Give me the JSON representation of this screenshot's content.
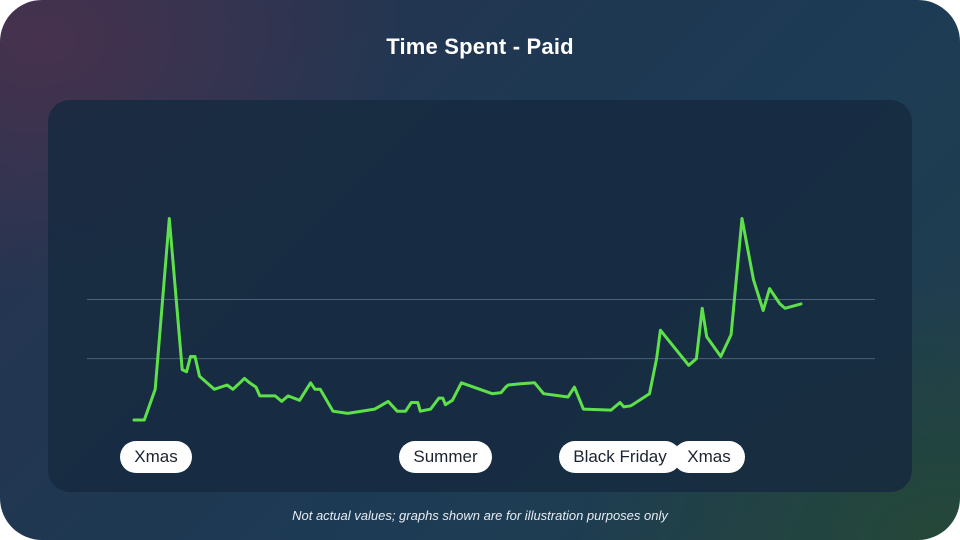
{
  "title": "Time Spent - Paid",
  "footnote": "Not actual values; graphs shown are for illustration purposes only",
  "colors": {
    "line": "#5ee04a",
    "gridline": "#4a627a",
    "pill_bg": "#ffffff",
    "pill_text": "#1b2330"
  },
  "chart_data": {
    "type": "line",
    "title": "Time Spent - Paid",
    "xlabel": "",
    "ylabel": "",
    "xlim": [
      0,
      100
    ],
    "ylim": [
      0,
      100
    ],
    "grid": true,
    "y_gridlines": [
      28,
      55
    ],
    "series": [
      {
        "color": "#5ee04a",
        "points": [
          [
            0,
            0
          ],
          [
            1.6,
            0
          ],
          [
            3.3,
            14
          ],
          [
            5.5,
            92
          ],
          [
            7.5,
            23
          ],
          [
            8.2,
            22
          ],
          [
            8.8,
            29
          ],
          [
            9.5,
            29
          ],
          [
            10.2,
            20
          ],
          [
            12.5,
            14
          ],
          [
            14.5,
            16
          ],
          [
            15.4,
            14
          ],
          [
            16.5,
            17
          ],
          [
            17.2,
            19
          ],
          [
            18,
            17
          ],
          [
            19,
            15
          ],
          [
            19.6,
            11
          ],
          [
            22,
            11
          ],
          [
            23,
            8.5
          ],
          [
            24,
            11
          ],
          [
            25.8,
            9
          ],
          [
            27.5,
            17
          ],
          [
            28.2,
            14
          ],
          [
            29,
            14
          ],
          [
            31,
            4
          ],
          [
            33.3,
            3
          ],
          [
            37.5,
            5
          ],
          [
            39.6,
            8.5
          ],
          [
            41,
            4
          ],
          [
            42.3,
            4
          ],
          [
            43.2,
            8
          ],
          [
            44.2,
            8
          ],
          [
            44.6,
            4
          ],
          [
            46.2,
            5
          ],
          [
            47.5,
            10
          ],
          [
            48.1,
            10
          ],
          [
            48.5,
            7
          ],
          [
            49.6,
            9
          ],
          [
            51,
            17
          ],
          [
            55.8,
            12
          ],
          [
            57.2,
            12.5
          ],
          [
            57.9,
            15
          ],
          [
            58.3,
            16
          ],
          [
            60,
            16.5
          ],
          [
            62.4,
            17
          ],
          [
            63.8,
            12
          ],
          [
            67.6,
            10.5
          ],
          [
            68.6,
            15
          ],
          [
            70,
            5
          ],
          [
            74.3,
            4.5
          ],
          [
            75.7,
            8
          ],
          [
            76.3,
            6
          ],
          [
            77.4,
            6.5
          ],
          [
            80.3,
            12
          ],
          [
            81.4,
            28
          ],
          [
            82,
            41
          ],
          [
            86.4,
            25
          ],
          [
            87.6,
            28
          ],
          [
            88.5,
            51
          ],
          [
            89.2,
            38
          ],
          [
            91.4,
            29
          ],
          [
            93,
            39
          ],
          [
            94.7,
            92
          ],
          [
            96.5,
            64
          ],
          [
            98,
            50
          ],
          [
            99,
            60
          ],
          [
            100.6,
            53
          ],
          [
            101.4,
            51
          ],
          [
            103.9,
            53
          ]
        ]
      }
    ],
    "event_labels": [
      {
        "label": "Xmas",
        "x": 3.5
      },
      {
        "label": "Summer",
        "x": 48.5
      },
      {
        "label": "Black Friday",
        "x": 75.7
      },
      {
        "label": "Xmas",
        "x": 89.5
      }
    ]
  }
}
